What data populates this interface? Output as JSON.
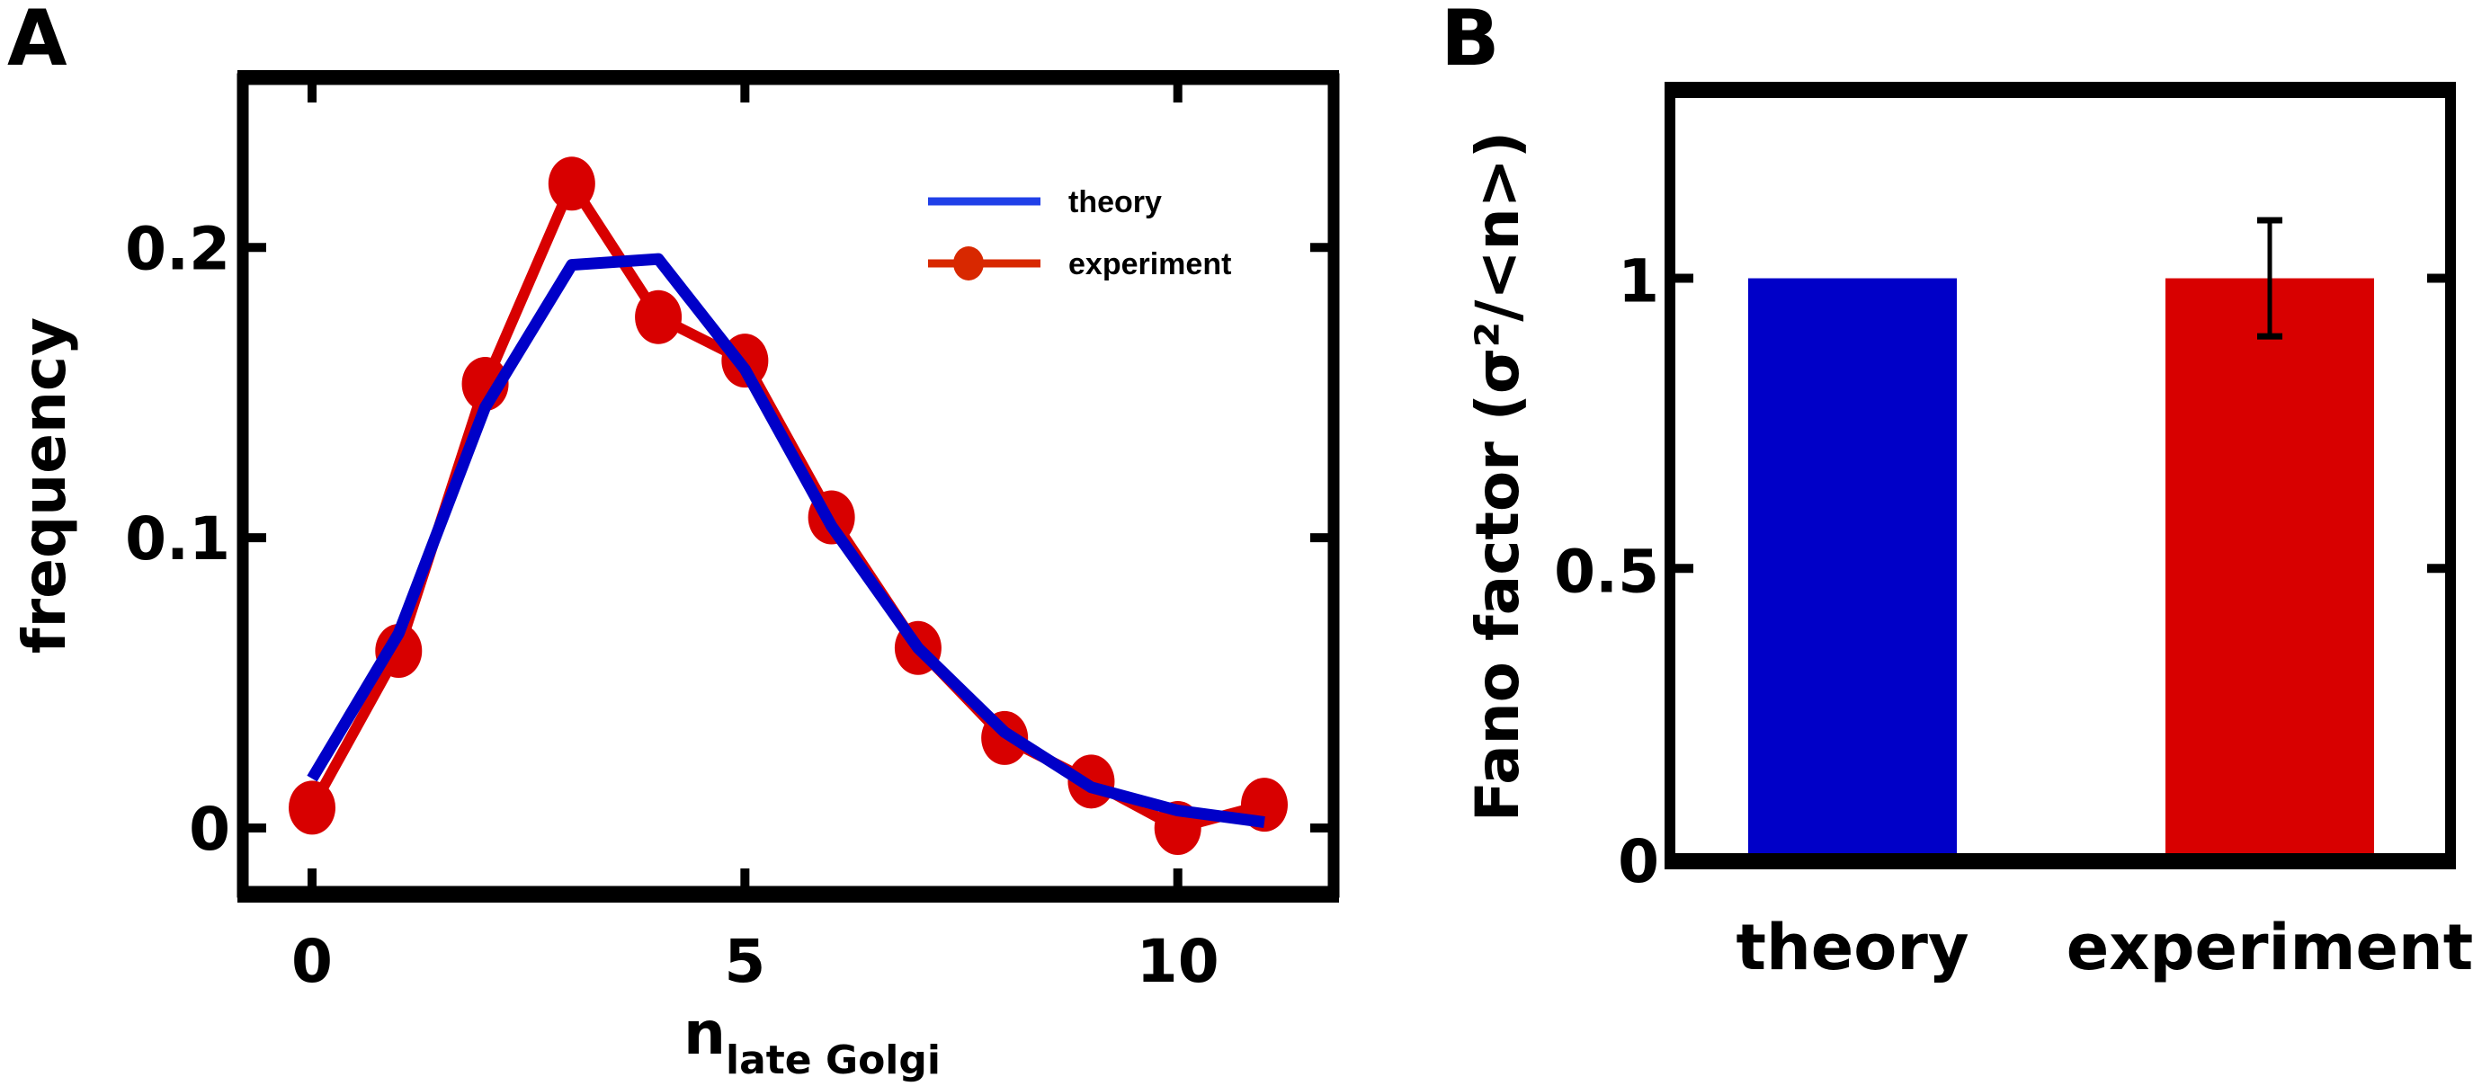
{
  "figure": {
    "panel_labels": [
      "A",
      "B"
    ]
  },
  "chart_data": [
    {
      "panel": "A",
      "type": "line",
      "title": "",
      "xlabel": "n",
      "xlabel_subscript": "late Golgi",
      "ylabel": "frequency",
      "xlim": [
        -0.8,
        11.8
      ],
      "ylim": [
        -0.022,
        0.258
      ],
      "xticks": [
        0,
        5,
        10
      ],
      "xtick_labels": [
        "0",
        "5",
        "10"
      ],
      "yticks": [
        0,
        0.1,
        0.2
      ],
      "ytick_labels": [
        "0",
        "0.1",
        "0.2"
      ],
      "grid": false,
      "legend": {
        "position": "top-right",
        "entries": [
          "theory",
          "experiment"
        ]
      },
      "x": [
        0,
        1,
        2,
        3,
        4,
        5,
        6,
        7,
        8,
        9,
        10,
        11
      ],
      "series": [
        {
          "name": "theory",
          "color": "#0000c8",
          "legend_color": "#2040e8",
          "marker": "none",
          "values": [
            0.017,
            0.067,
            0.145,
            0.194,
            0.196,
            0.158,
            0.104,
            0.062,
            0.033,
            0.014,
            0.006,
            0.002
          ]
        },
        {
          "name": "experiment",
          "color": "#d80000",
          "marker": "circle",
          "values": [
            0.007,
            0.061,
            0.153,
            0.222,
            0.176,
            0.161,
            0.107,
            0.062,
            0.031,
            0.016,
            0.0,
            0.008
          ]
        }
      ]
    },
    {
      "panel": "B",
      "type": "bar",
      "title": "",
      "xlabel": "",
      "ylabel": "Fano factor (σ²/<n>)",
      "ylim": [
        0,
        1.32
      ],
      "yticks": [
        0,
        0.5,
        1
      ],
      "ytick_labels": [
        "0",
        "0.5",
        "1"
      ],
      "grid": false,
      "categories": [
        "theory",
        "experiment"
      ],
      "values": [
        1.0,
        1.0
      ],
      "errors": [
        null,
        0.1
      ],
      "colors": [
        "#0000c8",
        "#d80000"
      ]
    }
  ]
}
